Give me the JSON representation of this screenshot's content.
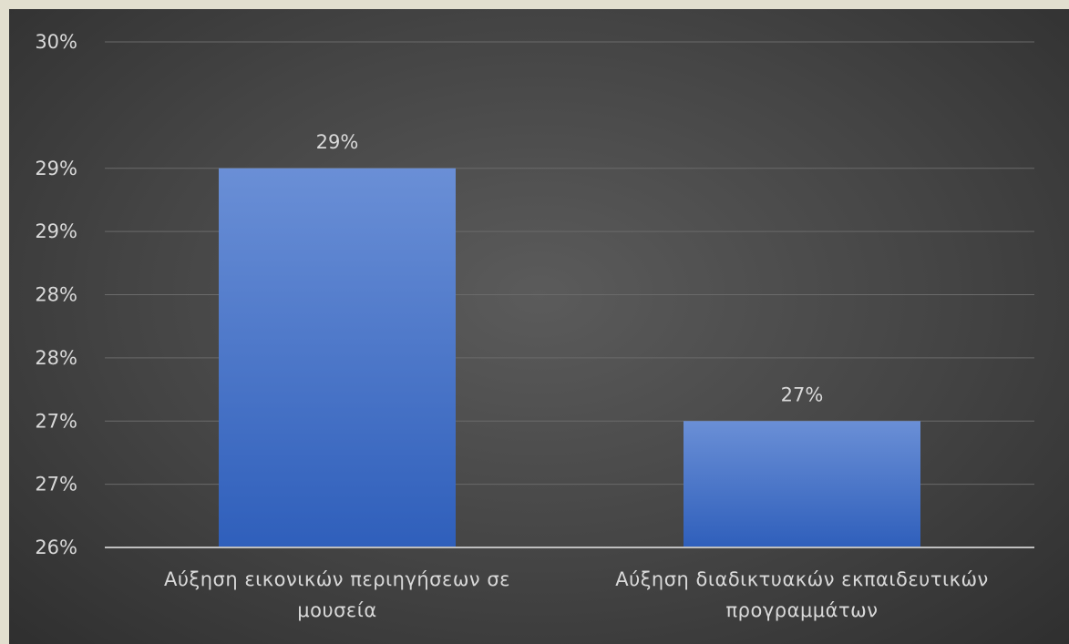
{
  "chart_data": {
    "type": "bar",
    "title": "",
    "xlabel": "",
    "ylabel": "",
    "categories": [
      [
        "Αύξηση εικονικών περιηγήσεων σε",
        "μουσεία"
      ],
      [
        "Αύξηση διαδικτυακών εκπαιδευτικών",
        "προγραμμάτων"
      ]
    ],
    "values": [
      29,
      27
    ],
    "value_labels": [
      "29%",
      "27%"
    ],
    "ylim": [
      26,
      30
    ],
    "y_ticks": [
      {
        "value": 26,
        "label": "26%"
      },
      {
        "value": 26.5,
        "label": "27%"
      },
      {
        "value": 27,
        "label": "27%"
      },
      {
        "value": 27.5,
        "label": "28%"
      },
      {
        "value": 28,
        "label": "28%"
      },
      {
        "value": 28.5,
        "label": "29%"
      },
      {
        "value": 29,
        "label": "29%"
      },
      {
        "value": 30,
        "label": "30%"
      }
    ],
    "grid": true,
    "legend": "none",
    "bar_color_top": "#6a8fd6",
    "bar_color_bottom": "#2f5fbb",
    "background_color": "#4a4a4a",
    "frame_color": "#e2dfcf"
  }
}
